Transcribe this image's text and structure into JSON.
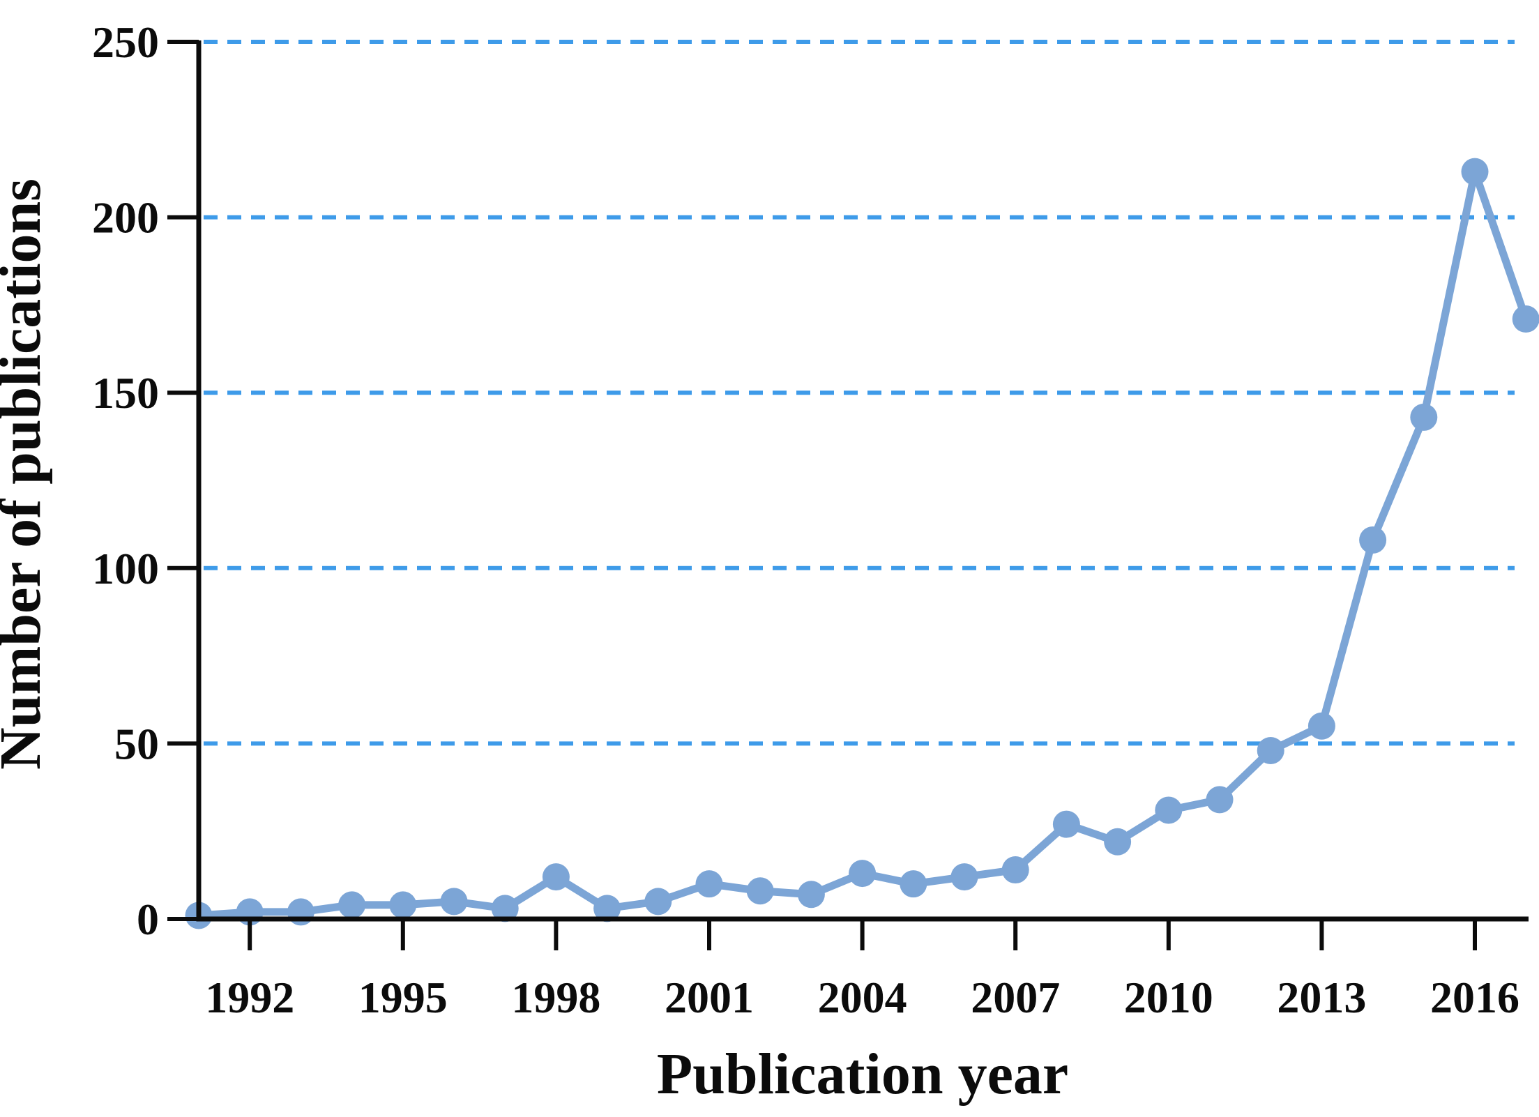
{
  "chart_data": {
    "type": "line",
    "title": "",
    "xlabel": "Publication year",
    "ylabel": "Number of publications",
    "series": [
      {
        "name": "Number of publications",
        "x": [
          1991,
          1992,
          1993,
          1994,
          1995,
          1996,
          1997,
          1998,
          1999,
          2000,
          2001,
          2002,
          2003,
          2004,
          2005,
          2006,
          2007,
          2008,
          2009,
          2010,
          2011,
          2012,
          2013,
          2014,
          2015,
          2016,
          2017
        ],
        "values": [
          1,
          2,
          2,
          4,
          4,
          5,
          3,
          12,
          3,
          5,
          10,
          8,
          7,
          13,
          10,
          12,
          14,
          27,
          22,
          31,
          34,
          48,
          55,
          108,
          143,
          213,
          171
        ]
      }
    ],
    "xticks": [
      1992,
      1995,
      1998,
      2001,
      2004,
      2007,
      2010,
      2013,
      2016
    ],
    "yticks": [
      0,
      50,
      100,
      150,
      200,
      250
    ],
    "xlim": [
      1991,
      2017
    ],
    "ylim": [
      0,
      250
    ],
    "grid": "horizontal-dashed-at-yticks-above-zero",
    "legend_position": "none",
    "marker": "circle",
    "colors": {
      "line": "#7CA5D6",
      "marker": "#7CA5D6",
      "grid": "#3E9BE9",
      "axis": "#0b0b0b",
      "text": "#0b0b0b",
      "background": "#ffffff"
    }
  }
}
